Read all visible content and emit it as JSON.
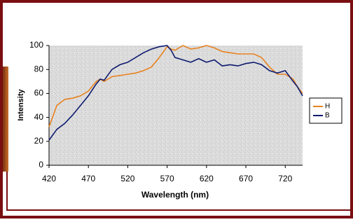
{
  "chart_data": {
    "type": "line",
    "x_label": "Wavelength (nm)",
    "y_label": "Intensity",
    "x": [
      420,
      430,
      440,
      450,
      460,
      470,
      480,
      485,
      490,
      500,
      510,
      520,
      530,
      540,
      550,
      560,
      570,
      575,
      580,
      590,
      600,
      610,
      620,
      630,
      640,
      650,
      660,
      670,
      680,
      690,
      700,
      710,
      720,
      730,
      735,
      742
    ],
    "series": [
      {
        "name": "H",
        "color": "#e8821e",
        "values": [
          32,
          50,
          55,
          56,
          58,
          62,
          70,
          72,
          70,
          74,
          75,
          76,
          77,
          79,
          82,
          90,
          99,
          97,
          96,
          100,
          97,
          98,
          100,
          98,
          95,
          94,
          93,
          93,
          93,
          90,
          82,
          76,
          76,
          72,
          66,
          60
        ]
      },
      {
        "name": "B",
        "color": "#0d1a6e",
        "values": [
          21,
          30,
          35,
          42,
          50,
          58,
          68,
          72,
          71,
          80,
          84,
          86,
          90,
          94,
          97,
          99,
          100,
          96,
          90,
          88,
          86,
          89,
          86,
          88,
          83,
          84,
          83,
          85,
          86,
          84,
          79,
          77,
          79,
          70,
          66,
          58
        ]
      }
    ],
    "xlim": [
      420,
      742
    ],
    "xticks": [
      420,
      470,
      520,
      570,
      620,
      670,
      720
    ],
    "ylim": [
      0,
      100
    ],
    "yticks": [
      0,
      20,
      40,
      60,
      80,
      100
    ],
    "grid": false,
    "legend": "right"
  }
}
